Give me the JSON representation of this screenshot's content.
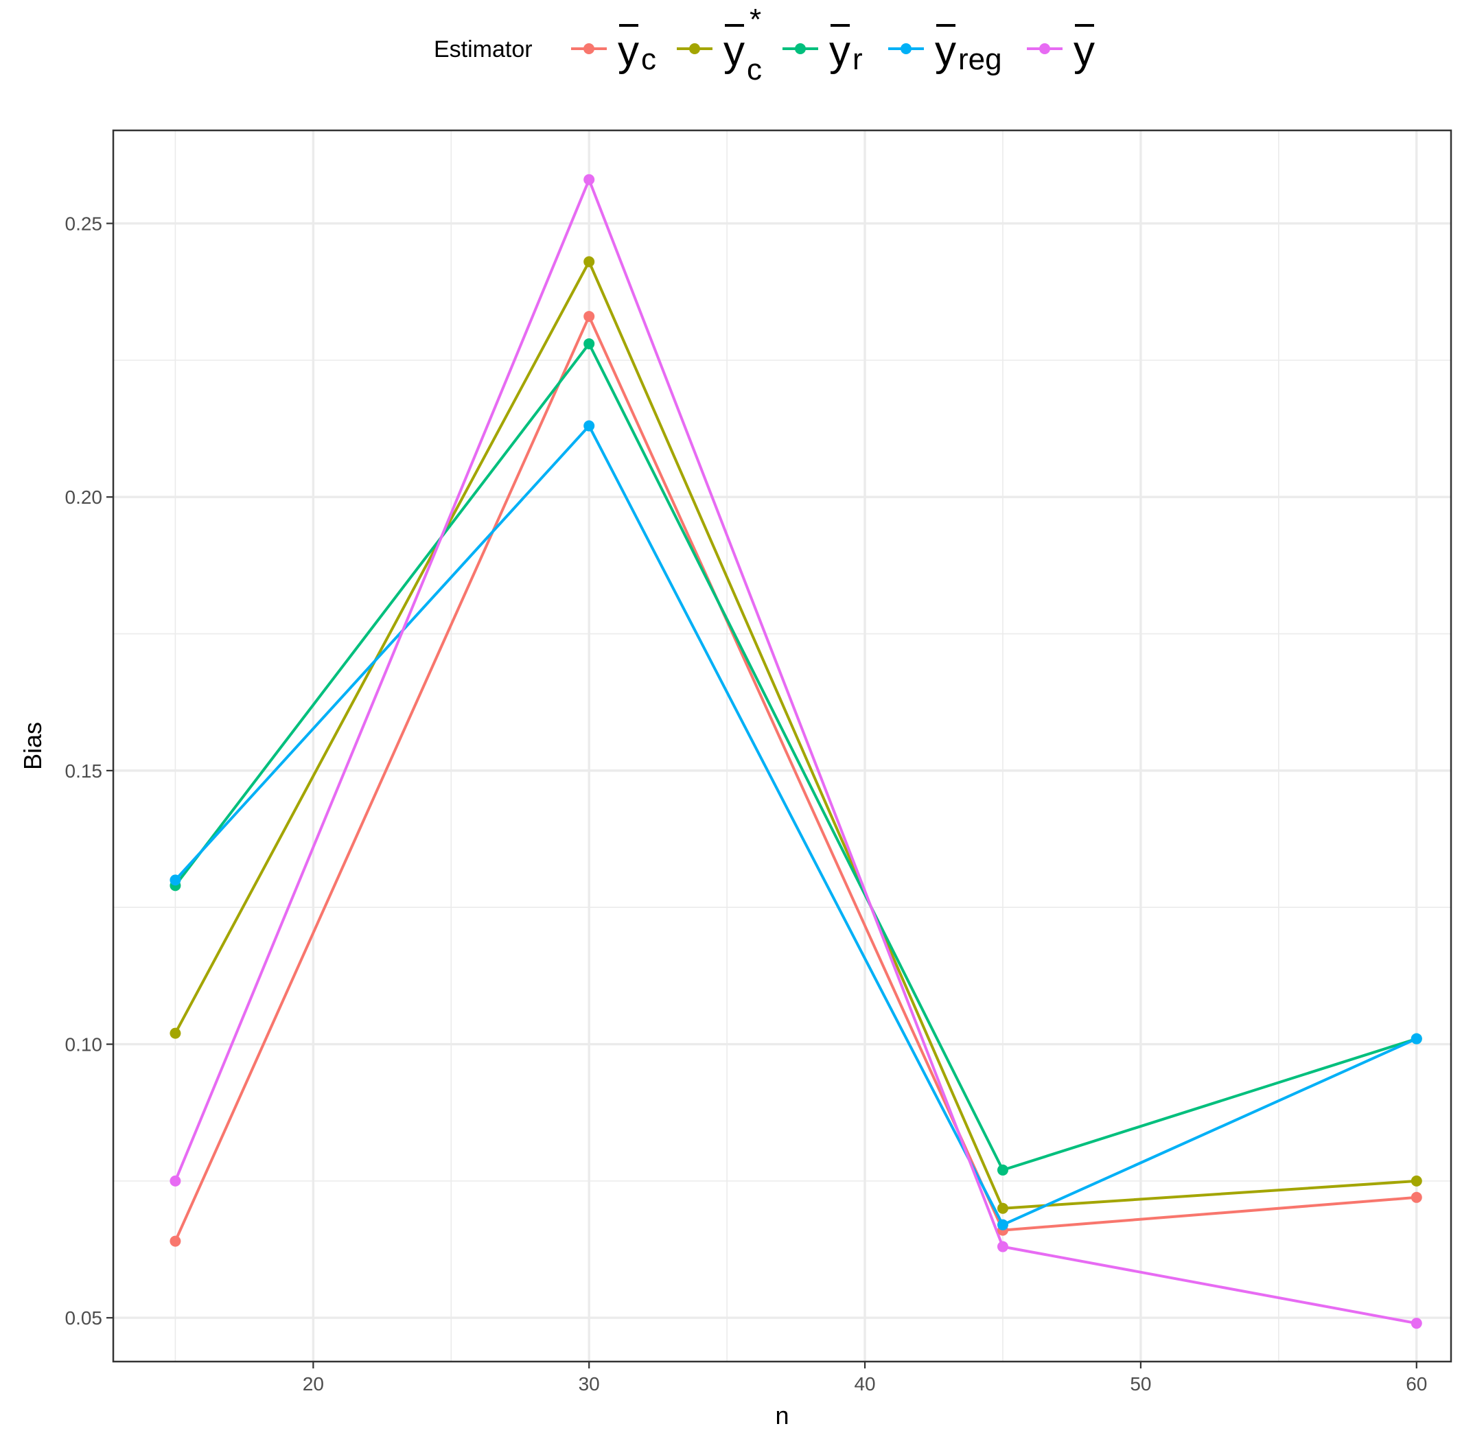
{
  "chart_data": {
    "type": "line",
    "xlabel": "n",
    "ylabel": "Bias",
    "xlim": [
      12.75,
      61.25
    ],
    "ylim": [
      0.042,
      0.267
    ],
    "x_major_ticks": [
      20,
      30,
      40,
      50,
      60
    ],
    "x_minor_ticks": [
      15,
      25,
      35,
      45,
      55
    ],
    "y_major_ticks": [
      0.05,
      0.1,
      0.15,
      0.2,
      0.25
    ],
    "y_minor_ticks": [
      0.075,
      0.125,
      0.175,
      0.225
    ],
    "x_tick_labels": [
      "20",
      "30",
      "40",
      "50",
      "60"
    ],
    "y_tick_labels": [
      "0.05",
      "0.10",
      "0.15",
      "0.20",
      "0.25"
    ],
    "grid": true,
    "legend": {
      "title": "Estimator",
      "placement": "top"
    },
    "x": [
      15,
      30,
      45,
      60
    ],
    "series": [
      {
        "name": "ȳc",
        "symbol": "y",
        "sub": "c",
        "sup": "",
        "color": "#F8766D",
        "values": [
          0.064,
          0.233,
          0.066,
          0.072
        ]
      },
      {
        "name": "ȳc*",
        "symbol": "y",
        "sub": "c",
        "sup": "*",
        "color": "#A3A500",
        "values": [
          0.102,
          0.243,
          0.07,
          0.075
        ]
      },
      {
        "name": "ȳr",
        "symbol": "y",
        "sub": "r",
        "sup": "",
        "color": "#00BF7D",
        "values": [
          0.129,
          0.228,
          0.077,
          0.101
        ]
      },
      {
        "name": "ȳreg",
        "symbol": "y",
        "sub": "reg",
        "sup": "",
        "color": "#00B0F6",
        "values": [
          0.13,
          0.213,
          0.067,
          0.101
        ]
      },
      {
        "name": "ȳ",
        "symbol": "y",
        "sub": "",
        "sup": "",
        "color": "#E76BF3",
        "values": [
          0.075,
          0.258,
          0.063,
          0.049
        ]
      }
    ]
  }
}
